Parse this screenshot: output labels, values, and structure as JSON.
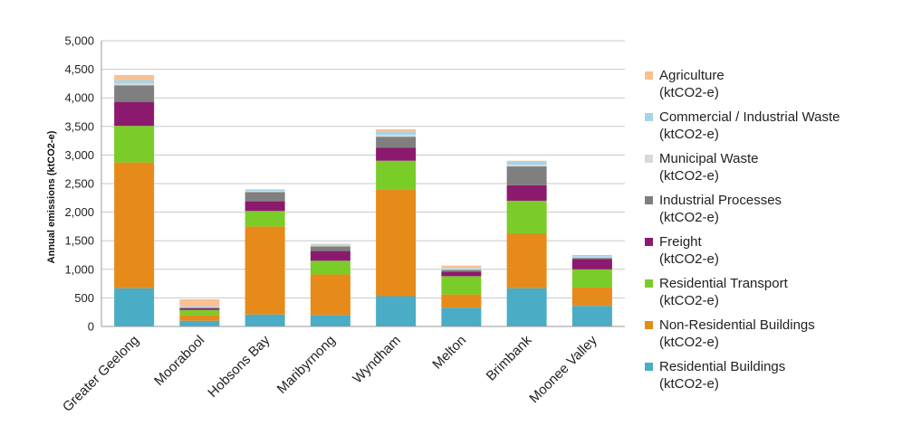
{
  "chart_data": {
    "type": "bar",
    "stacked": true,
    "title": "",
    "xlabel": "",
    "ylabel": "Annual emissions (ktCO2-e)",
    "ylim": [
      0,
      5000
    ],
    "yticks": [
      0,
      500,
      1000,
      1500,
      2000,
      2500,
      3000,
      3500,
      4000,
      4500,
      5000
    ],
    "ytick_labels": [
      "0",
      "500",
      "1,000",
      "1,500",
      "2,000",
      "2,500",
      "3,000",
      "3,500",
      "4,000",
      "4,500",
      "5,000"
    ],
    "grid": true,
    "legend_position": "right",
    "categories": [
      "Greater Geelong",
      "Moorabool",
      "Hobsons Bay",
      "Maribyrnong",
      "Wyndham",
      "Melton",
      "Brimbank",
      "Moonee Valley"
    ],
    "series": [
      {
        "name": "Residential Buildings (ktCO2-e)",
        "color": "#4BACC6",
        "values": [
          670,
          100,
          210,
          200,
          530,
          330,
          670,
          360
        ]
      },
      {
        "name": "Non-Residential Buildings (ktCO2-e)",
        "color": "#E68A1A",
        "values": [
          2200,
          100,
          1540,
          710,
          1860,
          230,
          960,
          320
        ]
      },
      {
        "name": "Residential Transport (ktCO2-e)",
        "color": "#7ACC29",
        "values": [
          640,
          90,
          270,
          240,
          510,
          320,
          570,
          320
        ]
      },
      {
        "name": "Freight (ktCO2-e)",
        "color": "#8B1A6E",
        "values": [
          420,
          30,
          170,
          170,
          230,
          80,
          270,
          180
        ]
      },
      {
        "name": "Industrial Processes (ktCO2-e)",
        "color": "#7F7F7F",
        "values": [
          290,
          10,
          160,
          80,
          190,
          30,
          330,
          20
        ]
      },
      {
        "name": "Municipal Waste (ktCO2-e)",
        "color": "#D9D9D9",
        "values": [
          30,
          10,
          20,
          15,
          30,
          20,
          30,
          20
        ]
      },
      {
        "name": "Commercial / Industrial Waste (ktCO2-e)",
        "color": "#A5D4E8",
        "values": [
          60,
          15,
          30,
          20,
          60,
          15,
          50,
          30
        ]
      },
      {
        "name": "Agriculture (ktCO2-e)",
        "color": "#FAC090",
        "values": [
          90,
          120,
          0,
          10,
          40,
          40,
          20,
          0
        ]
      }
    ]
  },
  "legend_items": [
    "Agriculture\n(ktCO2-e)",
    "Commercial / Industrial Waste\n(ktCO2-e)",
    "Municipal Waste\n(ktCO2-e)",
    "Industrial Processes\n(ktCO2-e)",
    "Freight\n(ktCO2-e)",
    "Residential Transport\n(ktCO2-e)",
    "Non-Residential Buildings\n(ktCO2-e)",
    "Residential Buildings\n(ktCO2-e)"
  ]
}
